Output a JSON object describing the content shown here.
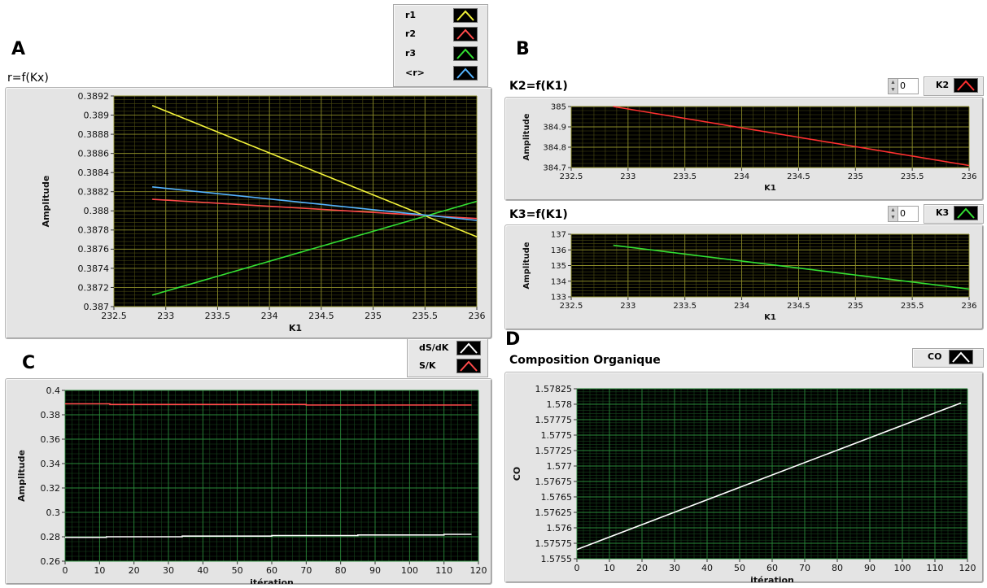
{
  "panels": {
    "A": {
      "letter": "A",
      "title": "r=f(Kx)"
    },
    "B": {
      "letter": "B",
      "title1": "K2=f(K1)",
      "title2": "K3=f(K1)",
      "spin1_value": "0",
      "spin2_value": "0"
    },
    "C": {
      "letter": "C"
    },
    "D": {
      "letter": "D",
      "title": "Composition Organique"
    }
  },
  "colors": {
    "yellow": "#f2f23a",
    "red": "#ff4a4a",
    "green": "#33e033",
    "blue": "#55b4ff",
    "white": "#ffffff",
    "plot_bg_yellow": "#000000",
    "grid_yellow": "#6f6f1d",
    "grid_green": "#1f6d2b"
  },
  "chart_data": [
    {
      "id": "A",
      "type": "line",
      "title": "r=f(Kx)",
      "xlabel": "K1",
      "ylabel": "Amplitude",
      "xlim": [
        232.5,
        236
      ],
      "ylim": [
        0.387,
        0.3892
      ],
      "xticks": [
        "232.5",
        "233",
        "233.5",
        "234",
        "234.5",
        "235",
        "235.5",
        "236"
      ],
      "yticks": [
        "0.387",
        "0.3872",
        "0.3874",
        "0.3876",
        "0.3878",
        "0.388",
        "0.3882",
        "0.3884",
        "0.3886",
        "0.3888",
        "0.389",
        "0.3892"
      ],
      "legend": [
        "r1",
        "r2",
        "r3",
        "<r>"
      ],
      "grid": "yellow",
      "series": [
        {
          "name": "r1",
          "color": "#f2f23a",
          "x": [
            232.87,
            236
          ],
          "y": [
            0.3891,
            0.38773
          ]
        },
        {
          "name": "r2",
          "color": "#ff4a4a",
          "x": [
            232.87,
            236
          ],
          "y": [
            0.38812,
            0.38792
          ]
        },
        {
          "name": "r3",
          "color": "#33e033",
          "x": [
            232.87,
            236
          ],
          "y": [
            0.38712,
            0.3881
          ]
        },
        {
          "name": "<r>",
          "color": "#55b4ff",
          "x": [
            232.87,
            236
          ],
          "y": [
            0.38825,
            0.3879
          ]
        }
      ]
    },
    {
      "id": "B1",
      "type": "line",
      "title": "K2=f(K1)",
      "xlabel": "K1",
      "ylabel": "Amplitude",
      "xlim": [
        232.5,
        236
      ],
      "ylim": [
        384.7,
        385
      ],
      "xticks": [
        "232.5",
        "233",
        "233.5",
        "234",
        "234.5",
        "235",
        "235.5",
        "236"
      ],
      "yticks": [
        "384.7",
        "384.8",
        "384.9",
        "385"
      ],
      "legend": [
        "K2"
      ],
      "grid": "yellow",
      "series": [
        {
          "name": "K2",
          "color": "#ff3030",
          "x": [
            232.87,
            236
          ],
          "y": [
            385.0,
            384.71
          ]
        }
      ]
    },
    {
      "id": "B2",
      "type": "line",
      "title": "K3=f(K1)",
      "xlabel": "K1",
      "ylabel": "Amplitude",
      "xlim": [
        232.5,
        236
      ],
      "ylim": [
        133,
        137
      ],
      "xticks": [
        "232.5",
        "233",
        "233.5",
        "234",
        "234.5",
        "235",
        "235.5",
        "236"
      ],
      "yticks": [
        "133",
        "134",
        "135",
        "136",
        "137"
      ],
      "legend": [
        "K3"
      ],
      "grid": "yellow",
      "series": [
        {
          "name": "K3",
          "color": "#33e033",
          "x": [
            232.87,
            236
          ],
          "y": [
            136.3,
            133.5
          ]
        }
      ]
    },
    {
      "id": "C",
      "type": "line",
      "xlabel": "itération",
      "ylabel": "Amplitude",
      "xlim": [
        0,
        120
      ],
      "ylim": [
        0.26,
        0.4
      ],
      "xticks": [
        "0",
        "10",
        "20",
        "30",
        "40",
        "50",
        "60",
        "70",
        "80",
        "90",
        "100",
        "110",
        "120"
      ],
      "yticks": [
        "0.26",
        "0.28",
        "0.3",
        "0.32",
        "0.34",
        "0.36",
        "0.38",
        "0.4"
      ],
      "legend": [
        "dS/dK",
        "S/K"
      ],
      "grid": "green",
      "series": [
        {
          "name": "dS/dK",
          "color": "#ffffff",
          "x": [
            0,
            12,
            12,
            34,
            34,
            60,
            60,
            85,
            85,
            110,
            110,
            118
          ],
          "y": [
            0.2795,
            0.2795,
            0.28,
            0.28,
            0.2805,
            0.2805,
            0.281,
            0.281,
            0.2815,
            0.2815,
            0.282,
            0.282
          ]
        },
        {
          "name": "S/K",
          "color": "#ff4a4a",
          "x": [
            0,
            13,
            13,
            70,
            70,
            118
          ],
          "y": [
            0.389,
            0.389,
            0.3885,
            0.3885,
            0.388,
            0.388
          ]
        }
      ]
    },
    {
      "id": "D",
      "type": "line",
      "title": "Composition Organique",
      "xlabel": "itération",
      "ylabel": "CO",
      "xlim": [
        0,
        120
      ],
      "ylim": [
        1.5755,
        1.57825
      ],
      "xticks": [
        "0",
        "10",
        "20",
        "30",
        "40",
        "50",
        "60",
        "70",
        "80",
        "90",
        "100",
        "110",
        "120"
      ],
      "yticks": [
        "1.5755",
        "1.57575",
        "1.576",
        "1.57625",
        "1.5765",
        "1.57675",
        "1.577",
        "1.57725",
        "1.5775",
        "1.57775",
        "1.578",
        "1.57825"
      ],
      "legend": [
        "CO"
      ],
      "grid": "green",
      "series": [
        {
          "name": "CO",
          "color": "#ffffff",
          "x": [
            0,
            118
          ],
          "y": [
            1.57565,
            1.57802
          ]
        }
      ]
    }
  ]
}
